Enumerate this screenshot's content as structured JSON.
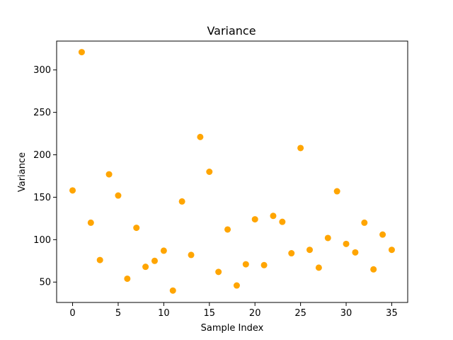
{
  "chart_data": {
    "type": "scatter",
    "title": "Variance",
    "xlabel": "Sample Index",
    "ylabel": "Variance",
    "xlim": [
      -1.75,
      36.75
    ],
    "ylim": [
      26,
      334
    ],
    "xticks": [
      0,
      5,
      10,
      15,
      20,
      25,
      30,
      35
    ],
    "yticks": [
      50,
      100,
      150,
      200,
      250,
      300
    ],
    "grid": false,
    "marker_color": "#ffa500",
    "x": [
      0,
      1,
      2,
      3,
      4,
      5,
      6,
      7,
      8,
      9,
      10,
      11,
      12,
      13,
      14,
      15,
      16,
      17,
      18,
      19,
      20,
      21,
      22,
      23,
      24,
      25,
      26,
      27,
      28,
      29,
      30,
      31,
      32,
      33,
      34,
      35
    ],
    "y": [
      158,
      321,
      120,
      76,
      177,
      152,
      54,
      114,
      68,
      75,
      87,
      40,
      145,
      82,
      221,
      180,
      62,
      112,
      46,
      71,
      124,
      70,
      128,
      121,
      84,
      208,
      88,
      67,
      102,
      157,
      95,
      85,
      120,
      65,
      106,
      88
    ]
  }
}
